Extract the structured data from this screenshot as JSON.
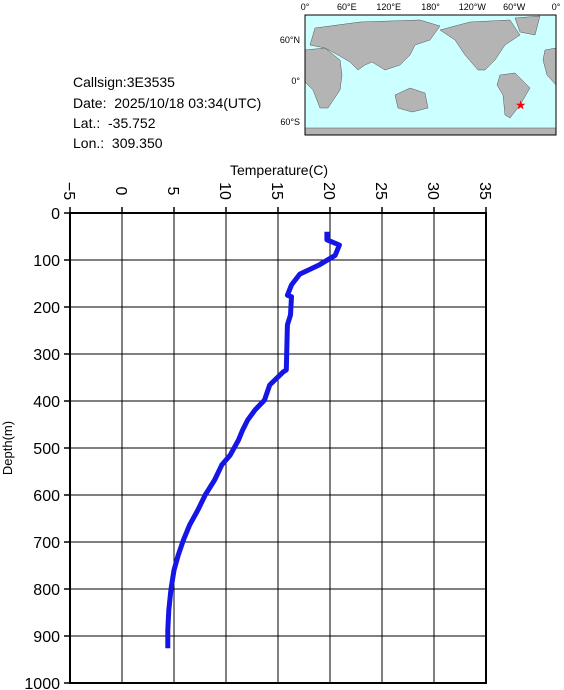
{
  "station": {
    "lines": [
      "Callsign:3E3535",
      "Date:  2025/10/18 03:34(UTC)",
      "Lat.:  -35.752",
      "Lon.:  309.350"
    ],
    "lat": -35.752,
    "lon": 309.35
  },
  "map": {
    "lon_ticks": [
      {
        "value": 0,
        "label": "0°"
      },
      {
        "value": 60,
        "label": "60°E"
      },
      {
        "value": 120,
        "label": "120°E"
      },
      {
        "value": 180,
        "label": "180°"
      },
      {
        "value": 240,
        "label": "120°W"
      },
      {
        "value": 300,
        "label": "60°W"
      },
      {
        "value": 360,
        "label": "0°"
      }
    ],
    "lat_ticks": [
      {
        "value": 60,
        "label": "60°N"
      },
      {
        "value": 0,
        "label": "0°"
      },
      {
        "value": -60,
        "label": "60°S"
      }
    ],
    "marker_color": "#ff0000"
  },
  "chart_data": {
    "type": "line",
    "xlabel": "Temperature(C)",
    "ylabel": "Depth(m)",
    "color": "#1515e6",
    "x": [
      19.7,
      19.7,
      20.9,
      20.5,
      19.0,
      17.1,
      16.3,
      15.9,
      16.3,
      16.2,
      15.9,
      15.8,
      15.5,
      14.2,
      13.7,
      12.8,
      12.1,
      11.6,
      11.2,
      10.4,
      9.6,
      8.9,
      8.0,
      7.3,
      6.5,
      5.9,
      5.4,
      5.0,
      4.7,
      4.5,
      4.4,
      4.4
    ],
    "values": [
      40,
      57,
      68,
      90,
      110,
      130,
      153,
      175,
      178,
      217,
      238,
      334,
      338,
      366,
      398,
      419,
      440,
      462,
      483,
      515,
      536,
      568,
      600,
      632,
      664,
      696,
      728,
      760,
      802,
      845,
      887,
      926
    ],
    "xlim": [
      -5,
      35
    ],
    "ylim": [
      1000,
      0
    ],
    "xticks": [
      {
        "value": -5,
        "label": "−5"
      },
      0,
      5,
      10,
      15,
      20,
      25,
      30,
      35
    ],
    "yticks": [
      0,
      100,
      200,
      300,
      400,
      500,
      600,
      700,
      800,
      900,
      1000
    ],
    "grid": true
  }
}
